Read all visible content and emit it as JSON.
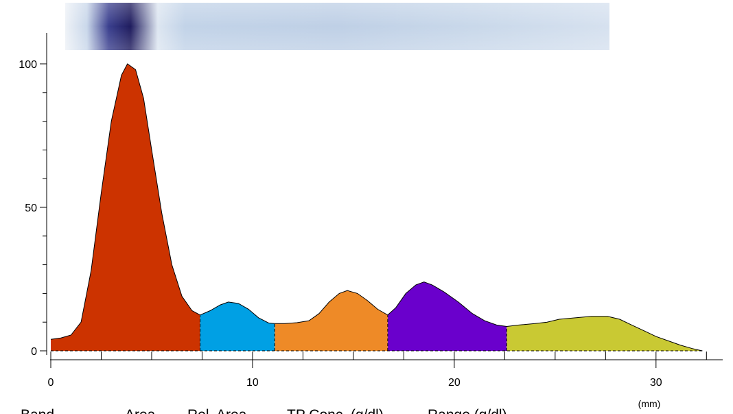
{
  "chart_data": {
    "type": "area",
    "x_unit": "(mm)",
    "xlim": [
      0,
      33
    ],
    "ylim": [
      0,
      100
    ],
    "x_ticks": [
      0,
      10,
      20,
      30
    ],
    "y_ticks": [
      0,
      50,
      100
    ],
    "grid": false,
    "gel_strip": {
      "colors": [
        "#eef2f7",
        "#c9d7ea",
        "#3a3f8e",
        "#1f1c5e",
        "#dde6f1",
        "#c2d3e8",
        "#bfd0e6",
        "#c9d8ea",
        "#d6e1ef"
      ]
    },
    "curve": [
      [
        0.0,
        4
      ],
      [
        0.5,
        4.5
      ],
      [
        1.0,
        5.5
      ],
      [
        1.5,
        10
      ],
      [
        2.0,
        28
      ],
      [
        2.5,
        55
      ],
      [
        3.0,
        80
      ],
      [
        3.5,
        96
      ],
      [
        3.8,
        100
      ],
      [
        4.2,
        98
      ],
      [
        4.6,
        88
      ],
      [
        5.0,
        70
      ],
      [
        5.5,
        48
      ],
      [
        6.0,
        30
      ],
      [
        6.5,
        19
      ],
      [
        7.0,
        14
      ],
      [
        7.4,
        12.5
      ],
      [
        7.9,
        14
      ],
      [
        8.4,
        16
      ],
      [
        8.8,
        17
      ],
      [
        9.3,
        16.5
      ],
      [
        9.8,
        14.5
      ],
      [
        10.3,
        11.5
      ],
      [
        10.8,
        9.7
      ],
      [
        11.1,
        9.5
      ],
      [
        11.6,
        9.5
      ],
      [
        12.2,
        9.8
      ],
      [
        12.8,
        10.5
      ],
      [
        13.3,
        13
      ],
      [
        13.8,
        17
      ],
      [
        14.3,
        20
      ],
      [
        14.7,
        21
      ],
      [
        15.2,
        20
      ],
      [
        15.7,
        17.5
      ],
      [
        16.2,
        14.5
      ],
      [
        16.7,
        12.5
      ],
      [
        17.1,
        15
      ],
      [
        17.6,
        20
      ],
      [
        18.1,
        23
      ],
      [
        18.5,
        24
      ],
      [
        18.9,
        23
      ],
      [
        19.5,
        20.5
      ],
      [
        20.2,
        17
      ],
      [
        20.9,
        13
      ],
      [
        21.5,
        10.5
      ],
      [
        22.1,
        9
      ],
      [
        22.6,
        8.5
      ],
      [
        23.2,
        9
      ],
      [
        24.0,
        9.5
      ],
      [
        24.6,
        10
      ],
      [
        25.2,
        11
      ],
      [
        26.0,
        11.5
      ],
      [
        26.8,
        12
      ],
      [
        27.6,
        12
      ],
      [
        28.2,
        11
      ],
      [
        28.8,
        9
      ],
      [
        29.4,
        7
      ],
      [
        30.0,
        5
      ],
      [
        30.6,
        3.5
      ],
      [
        31.2,
        2
      ],
      [
        31.8,
        0.8
      ],
      [
        32.3,
        0
      ]
    ],
    "segments": [
      {
        "from": 0.0,
        "to": 7.4,
        "color": "#cc3300"
      },
      {
        "from": 7.4,
        "to": 11.1,
        "color": "#00a0e4"
      },
      {
        "from": 11.1,
        "to": 16.7,
        "color": "#ee8a27"
      },
      {
        "from": 16.7,
        "to": 22.6,
        "color": "#6a00cc"
      },
      {
        "from": 22.6,
        "to": 32.3,
        "color": "#c9c933"
      }
    ],
    "table_header": [
      "Band",
      "Area",
      "Rel. Area",
      "TP Conc. (g/dl)",
      "Range (g/dl)"
    ]
  }
}
